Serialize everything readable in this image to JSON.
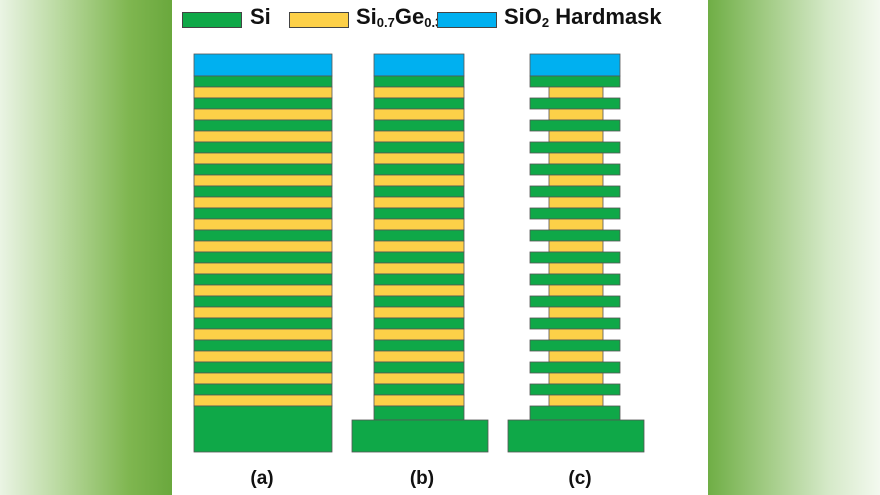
{
  "legend": {
    "si": {
      "label": "Si",
      "color": "#0fa848"
    },
    "sige": {
      "label_main": "Si",
      "label_sub1": "0.7",
      "label_main2": "Ge",
      "label_sub2": "0.3",
      "color": "#fdd048"
    },
    "hardmask": {
      "label_main": "SiO",
      "label_sub": "2",
      "label_rest": " Hardmask",
      "color": "#00b0f0"
    }
  },
  "layers": {
    "si_layer_count": 15,
    "sige_layer_count": 15
  },
  "captions": {
    "a": "(a)",
    "b": "(b)",
    "c": "(c)"
  }
}
